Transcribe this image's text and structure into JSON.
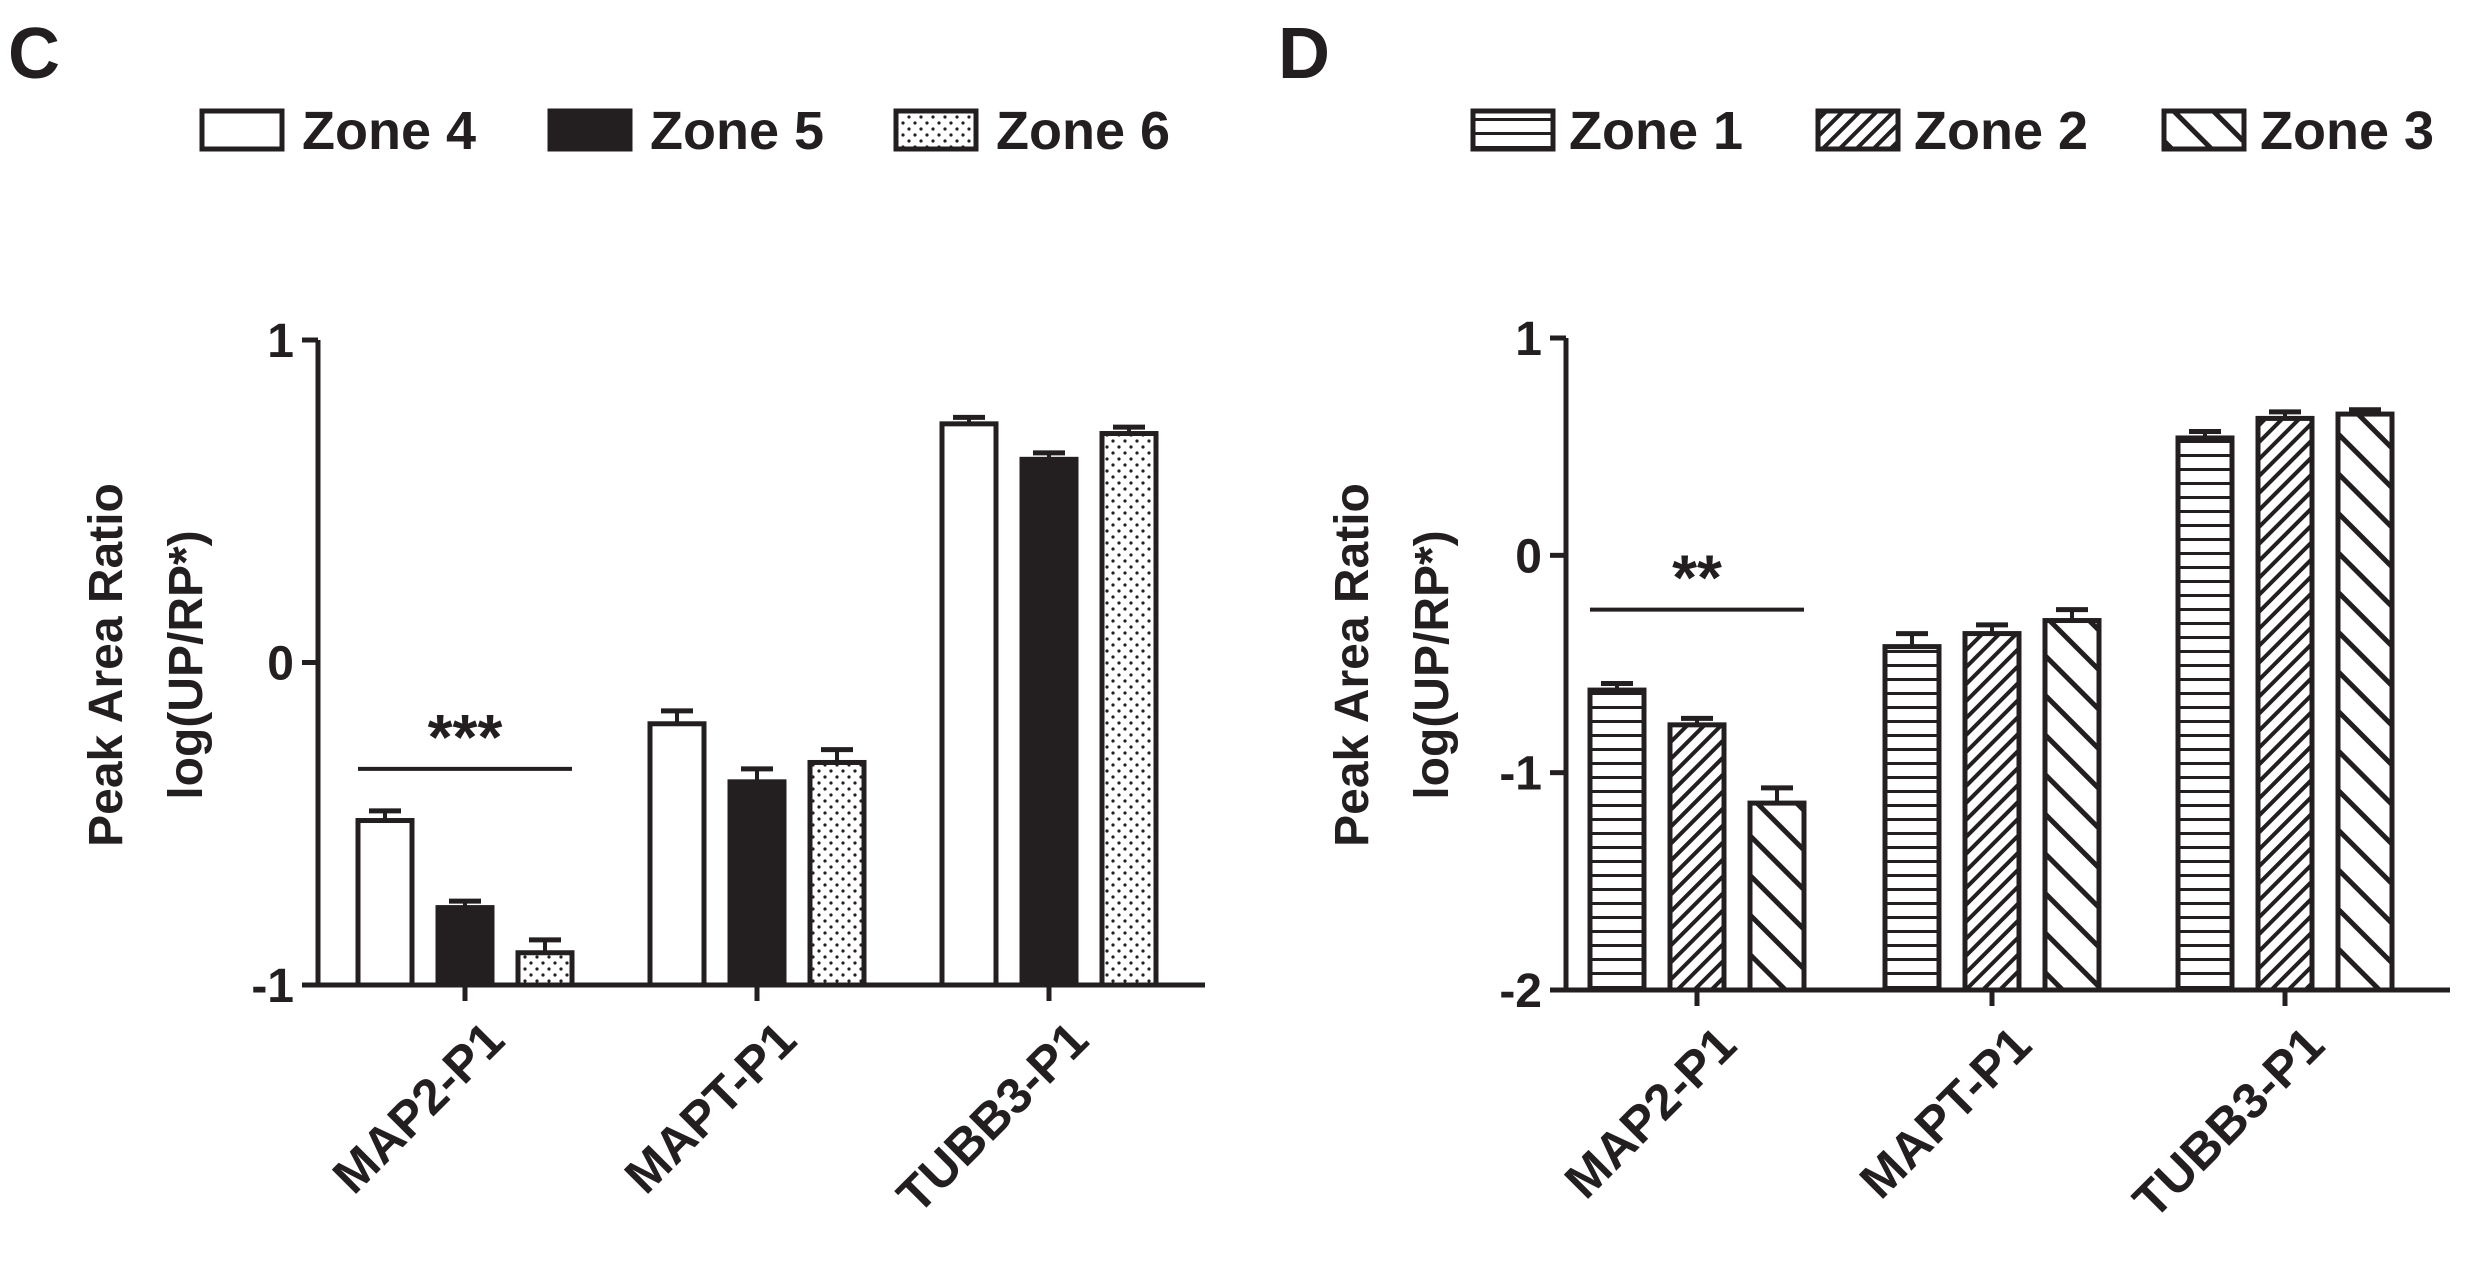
{
  "chart_data": [
    {
      "panel": "C",
      "type": "bar",
      "title": "",
      "ylabel_line1": "Peak Area Ratio",
      "ylabel_line2": "log(UP/RP*)",
      "xlabel": "",
      "ylim": [
        -1,
        1
      ],
      "yticks": [
        "1",
        "0",
        "-1"
      ],
      "ytick_values": [
        1,
        0,
        -1
      ],
      "categories": [
        "MAP2-P1",
        "MAPT-P1",
        "TUBB3-P1"
      ],
      "series": [
        {
          "name": "Zone 4",
          "pattern": "open",
          "values": [
            -0.49,
            -0.19,
            0.74
          ],
          "errors": [
            0.03,
            0.04,
            0.02
          ]
        },
        {
          "name": "Zone 5",
          "pattern": "solid",
          "values": [
            -0.76,
            -0.37,
            0.63
          ],
          "errors": [
            0.02,
            0.04,
            0.02
          ]
        },
        {
          "name": "Zone 6",
          "pattern": "dots",
          "values": [
            -0.9,
            -0.31,
            0.71
          ],
          "errors": [
            0.04,
            0.04,
            0.02
          ]
        }
      ],
      "significance": {
        "label": "***",
        "category": "MAP2-P1",
        "y": -0.33
      }
    },
    {
      "panel": "D",
      "type": "bar",
      "title": "",
      "ylabel_line1": "Peak Area Ratio",
      "ylabel_line2": "log(UP/RP*)",
      "xlabel": "",
      "ylim": [
        -2,
        1
      ],
      "yticks": [
        "1",
        "0",
        "-1",
        "-2"
      ],
      "ytick_values": [
        1,
        0,
        -1,
        -2
      ],
      "categories": [
        "MAP2-P1",
        "MAPT-P1",
        "TUBB3-P1"
      ],
      "series": [
        {
          "name": "Zone 1",
          "pattern": "hlines",
          "values": [
            -0.62,
            -0.42,
            0.54
          ],
          "errors": [
            0.03,
            0.06,
            0.03
          ]
        },
        {
          "name": "Zone 2",
          "pattern": "diag-dense",
          "values": [
            -0.78,
            -0.36,
            0.63
          ],
          "errors": [
            0.03,
            0.04,
            0.03
          ]
        },
        {
          "name": "Zone 3",
          "pattern": "diag-wide",
          "values": [
            -1.14,
            -0.3,
            0.65
          ],
          "errors": [
            0.07,
            0.05,
            0.02
          ]
        }
      ],
      "significance": {
        "label": "**",
        "category": "MAP2-P1",
        "y": -0.25
      }
    }
  ]
}
